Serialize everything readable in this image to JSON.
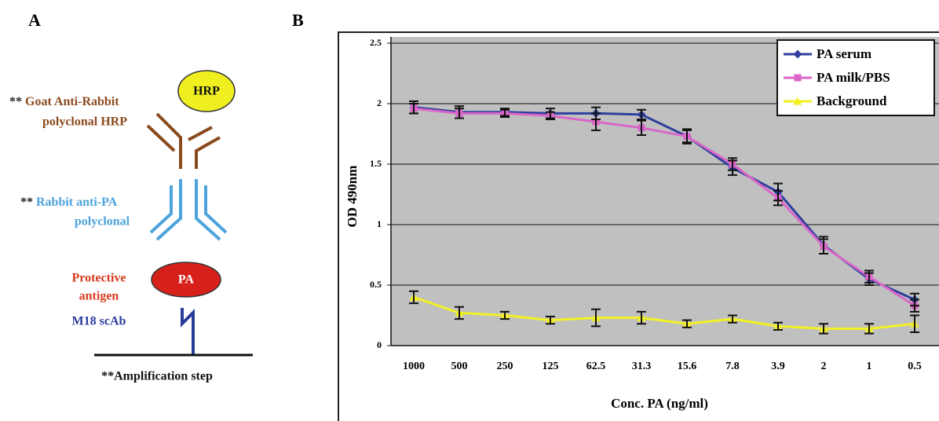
{
  "panel_labels": [
    "A",
    "B"
  ],
  "panel_a": {
    "goat_prefix": "**",
    "goat_line1": "Goat Anti-Rabbit",
    "goat_line2": "polyclonal HRP",
    "hrp": "HRP",
    "rabbit_prefix": "**",
    "rabbit_line1": "Rabbit anti-PA",
    "rabbit_line2": "polyclonal",
    "pa_line1": "Protective",
    "pa_line2": "antigen",
    "pa": "PA",
    "scab": "M18 scAb",
    "amplification": "**Amplification step"
  },
  "chart_data": {
    "type": "line",
    "x_label": "Conc. PA (ng/ml)",
    "y_label": "OD 490nm",
    "categories": [
      "1000",
      "500",
      "250",
      "125",
      "62.5",
      "31.3",
      "15.6",
      "7.8",
      "3.9",
      "2",
      "1",
      "0.5"
    ],
    "series": [
      {
        "name": "PA serum",
        "color": "#2f3f9e",
        "marker": "diamond",
        "values": [
          1.97,
          1.93,
          1.93,
          1.92,
          1.92,
          1.91,
          1.73,
          1.47,
          1.27,
          0.83,
          0.55,
          0.38
        ],
        "errors": [
          0.05,
          0.05,
          0.03,
          0.04,
          0.05,
          0.04,
          0.06,
          0.06,
          0.07,
          0.07,
          0.05,
          0.05
        ]
      },
      {
        "name": "PA milk/PBS",
        "color": "#d966c8",
        "marker": "square",
        "values": [
          1.96,
          1.92,
          1.92,
          1.9,
          1.85,
          1.8,
          1.73,
          1.5,
          1.22,
          0.82,
          0.57,
          0.33
        ],
        "errors": [
          0.04,
          0.04,
          0.03,
          0.03,
          0.07,
          0.06,
          0.05,
          0.05,
          0.06,
          0.06,
          0.05,
          0.05
        ]
      },
      {
        "name": "Background",
        "color": "#f2f023",
        "marker": "triangle",
        "values": [
          0.4,
          0.27,
          0.25,
          0.21,
          0.23,
          0.23,
          0.18,
          0.22,
          0.16,
          0.14,
          0.14,
          0.18
        ],
        "errors": [
          0.05,
          0.05,
          0.03,
          0.03,
          0.07,
          0.05,
          0.03,
          0.03,
          0.03,
          0.04,
          0.04,
          0.07
        ]
      }
    ],
    "ylim": [
      0,
      2.5
    ],
    "yticks": [
      0,
      0.5,
      1,
      1.5,
      2,
      2.5
    ],
    "grid": true,
    "legend": "top-right",
    "plot_background": "#c0c0c0"
  }
}
